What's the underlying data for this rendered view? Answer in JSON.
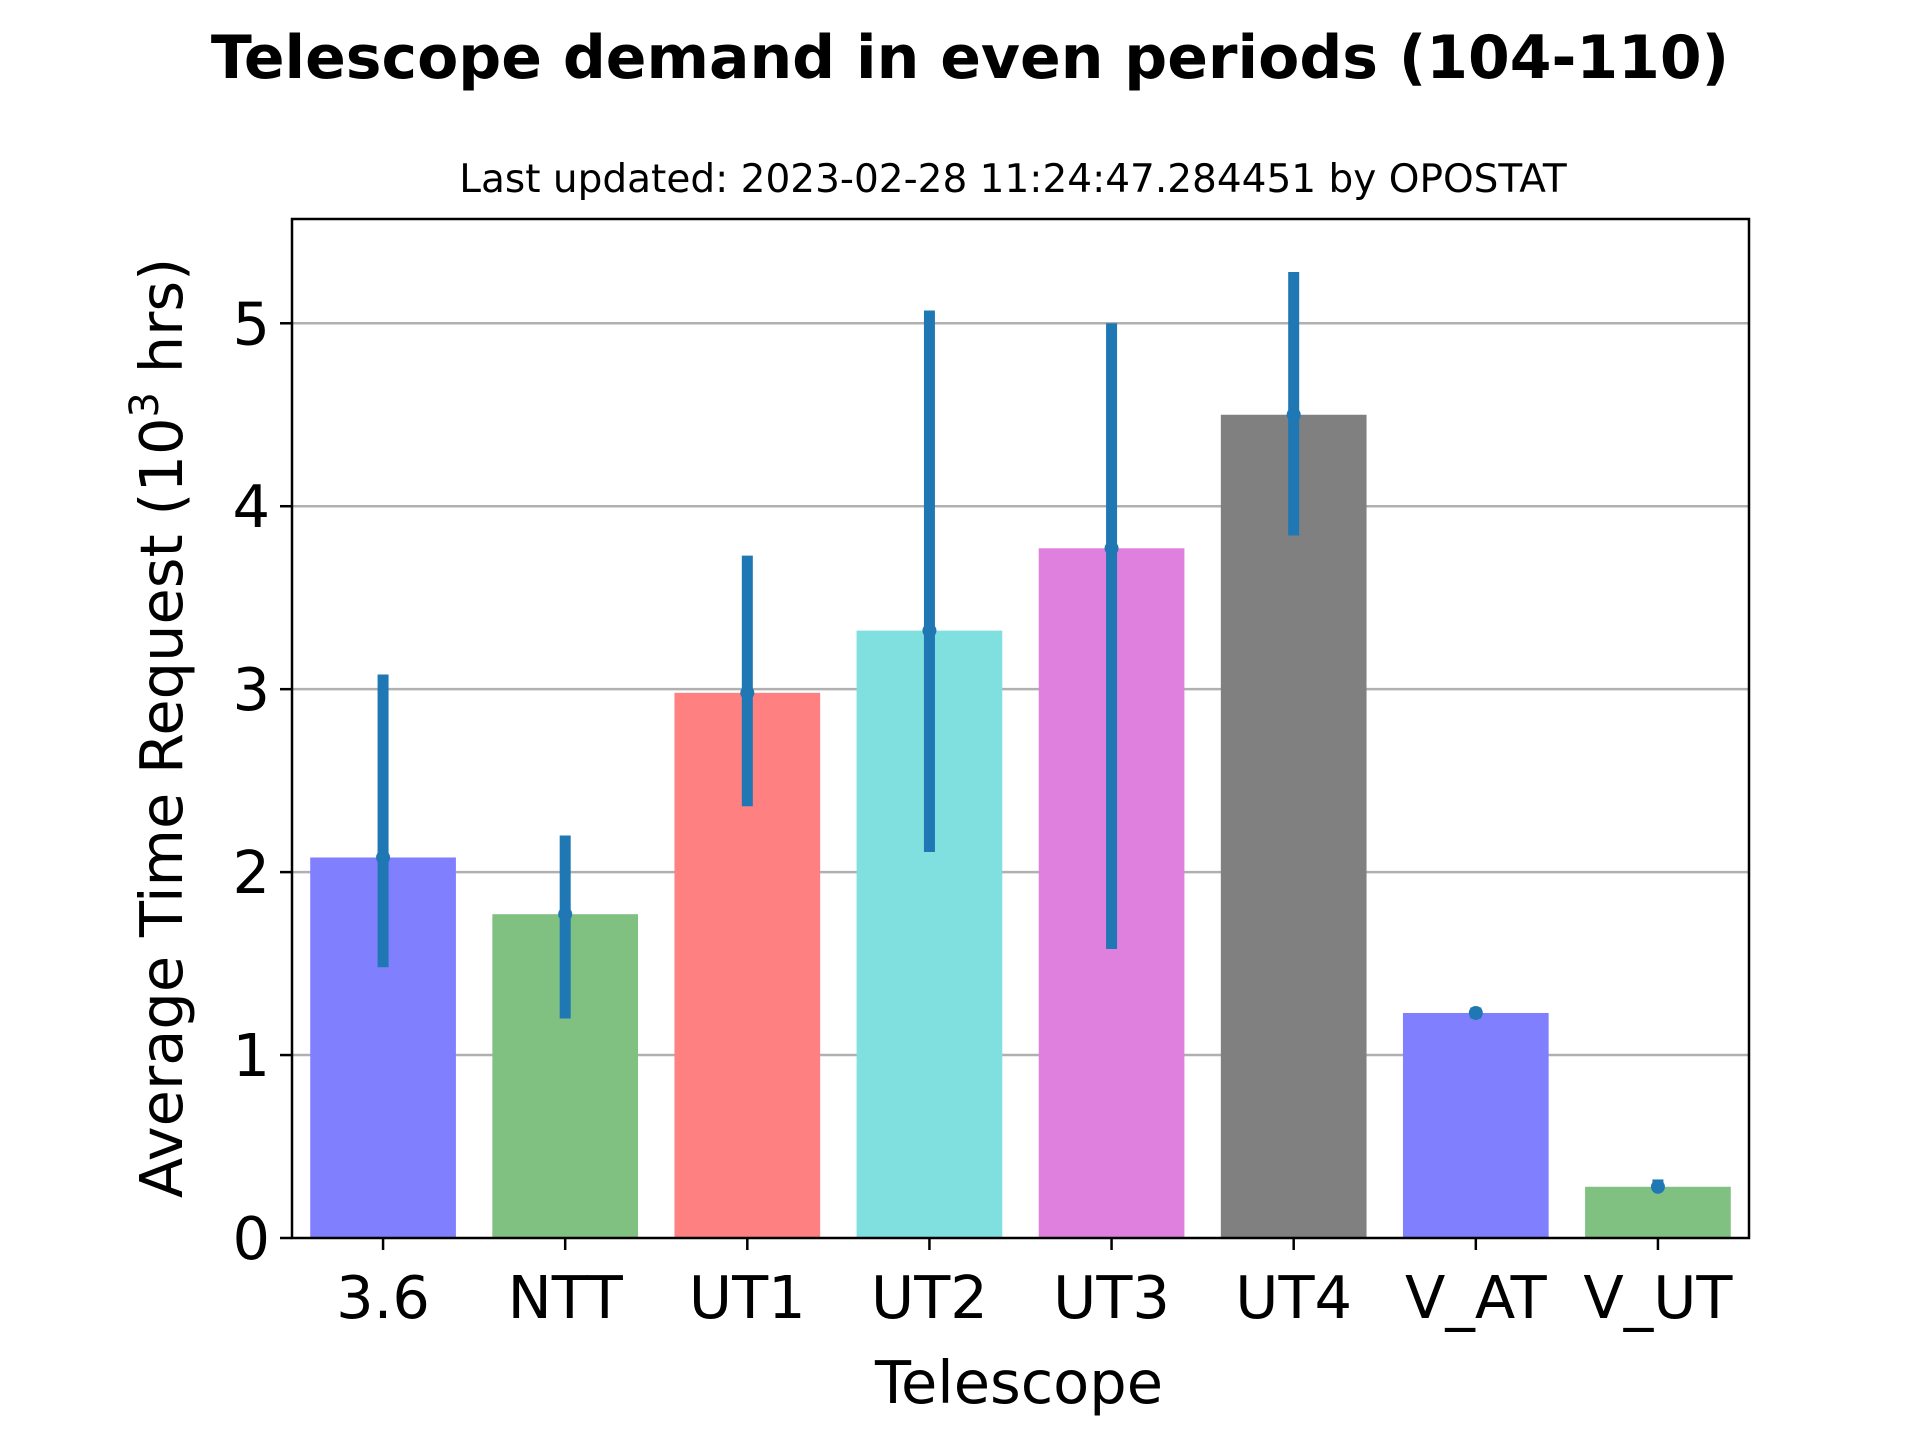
{
  "chart_data": {
    "type": "bar",
    "title": "Telescope demand in even periods (104-110)",
    "subtitle": "Last updated: 2023-02-28 11:24:47.284451 by OPOSTAT",
    "xlabel": "Telescope",
    "ylabel_prefix": "Average Time Request (10",
    "ylabel_exponent": "3",
    "ylabel_suffix": " hrs)",
    "categories": [
      "3.6",
      "NTT",
      "UT1",
      "UT2",
      "UT3",
      "UT4",
      "V_AT",
      "V_UT"
    ],
    "values": [
      2.08,
      1.77,
      2.98,
      3.32,
      3.77,
      4.5,
      1.23,
      0.28
    ],
    "error_low": [
      1.48,
      1.2,
      2.36,
      2.11,
      1.58,
      3.84,
      1.2,
      0.26
    ],
    "error_high": [
      3.08,
      2.2,
      3.73,
      5.07,
      5.0,
      5.28,
      1.26,
      0.32
    ],
    "bar_colors": [
      "#8080ff",
      "#80c080",
      "#ff8080",
      "#80dfdf",
      "#df80df",
      "#808080",
      "#8080ff",
      "#80c080"
    ],
    "error_color": "#1f77b4",
    "ylim": [
      0,
      5.57
    ],
    "yticks": [
      0,
      1,
      2,
      3,
      4,
      5
    ],
    "grid": "horizontal",
    "legend": "none"
  }
}
